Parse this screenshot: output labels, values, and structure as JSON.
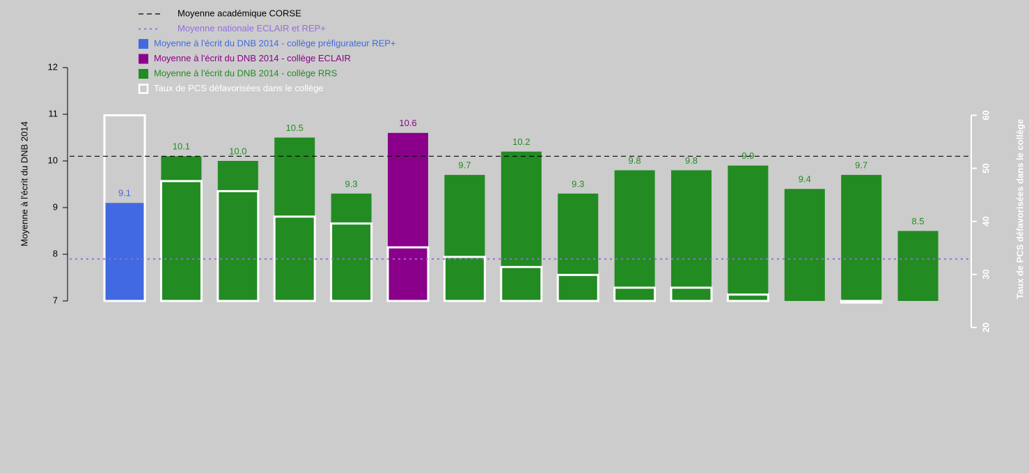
{
  "chart_data": {
    "type": "bar",
    "ylabel": "Moyenne à l'écrit du DNB 2014",
    "y2label": "Taux de PCS défavorisées dans le collège",
    "ylim": [
      7,
      12
    ],
    "yticks": [
      7,
      8,
      9,
      10,
      11,
      12
    ],
    "y2lim": [
      25,
      69
    ],
    "y2ticks": [
      20,
      30,
      40,
      50,
      60
    ],
    "reference_lines": [
      {
        "name": "Moyenne académique CORSE",
        "value": 10.1,
        "color": "#000000",
        "style": "dashed"
      },
      {
        "name": "Moyenne nationale ECLAIR et REP+",
        "value": 7.9,
        "color": "#9370db",
        "style": "dotted"
      }
    ],
    "series": [
      {
        "name": "Moyenne à l'écrit du DNB 2014 - collège préfigurateur REP+",
        "color": "#4169e1",
        "values": [
          9.1,
          null,
          null,
          null,
          null,
          null,
          null,
          null,
          null,
          null,
          null,
          null,
          null,
          null,
          null
        ],
        "value_labels": [
          "9.1",
          null,
          null,
          null,
          null,
          null,
          null,
          null,
          null,
          null,
          null,
          null,
          null,
          null,
          null
        ]
      },
      {
        "name": "Moyenne à l'écrit du DNB 2014 - collège ECLAIR",
        "color": "#8b008b",
        "values": [
          null,
          null,
          null,
          null,
          null,
          10.6,
          null,
          null,
          null,
          null,
          null,
          null,
          null,
          null,
          null
        ],
        "value_labels": [
          null,
          null,
          null,
          null,
          null,
          "10.6",
          null,
          null,
          null,
          null,
          null,
          null,
          null,
          null,
          null
        ]
      },
      {
        "name": "Moyenne à l'écrit du DNB 2014 - collège RRS",
        "color": "#228b22",
        "values": [
          null,
          10.1,
          10.0,
          10.5,
          9.3,
          null,
          9.7,
          10.2,
          9.3,
          9.8,
          9.8,
          9.9,
          9.4,
          9.7,
          8.5
        ],
        "value_labels": [
          null,
          "10.1",
          "10.0",
          "10.5",
          "9.3",
          null,
          "9.7",
          "10.2",
          "9.3",
          "9.8",
          "9.8",
          "9.9",
          "9.4",
          "9.7",
          "8.5"
        ]
      },
      {
        "name": "Taux de PCS défavorisées dans le collège",
        "color": "#ffffff",
        "axis": "y2",
        "values": [
          60,
          47.6,
          45.7,
          40.9,
          39.6,
          35.1,
          33.3,
          31.4,
          29.9,
          27.5,
          27.5,
          26.2,
          25,
          24.7,
          25
        ]
      }
    ]
  }
}
